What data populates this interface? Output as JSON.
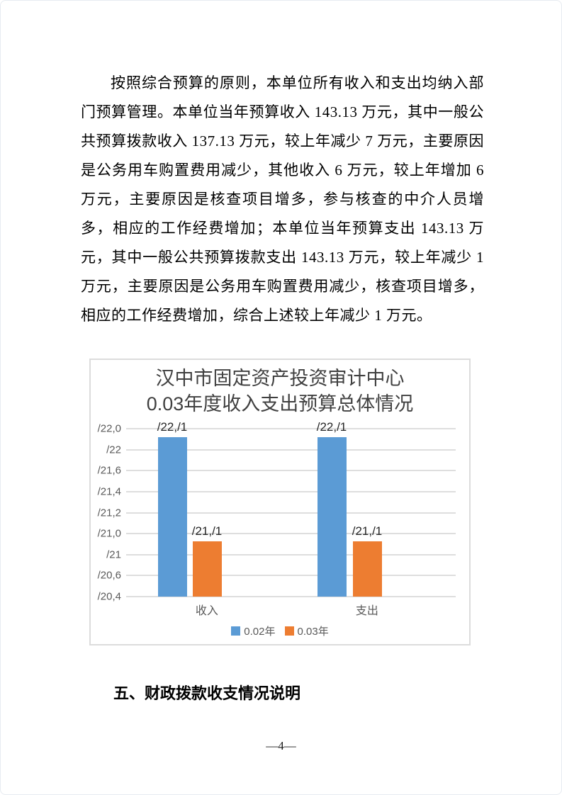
{
  "page": {
    "paragraph": "按照综合预算的原则，本单位所有收入和支出均纳入部门预算管理。本单位当年预算收入 143.13 万元，其中一般公共预算拨款收入 137.13 万元，较上年减少 7 万元，主要原因是公务用车购置费用减少，其他收入 6 万元，较上年增加 6 万元，主要原因是核查项目增多，参与核查的中介人员增多，相应的工作经费增加；本单位当年预算支出 143.13 万元，其中一般公共预算拨款支出 143.13 万元，较上年减少 1 万元，主要原因是公务用车购置费用减少，核查项目增多，相应的工作经费增加，综合上述较上年减少 1 万元。",
    "section_heading": "五、财政拨款收支情况说明",
    "page_number": "—4—"
  },
  "chart_data": {
    "type": "bar",
    "title_lines": [
      "汉中市固定资产投资审计中心",
      "0.03年度收入支出预算总体情况"
    ],
    "categories": [
      "收入",
      "支出"
    ],
    "y_ticks_top_to_bottom": [
      "/22,0",
      "/22",
      "/21,6",
      "/21,4",
      "/21,2",
      "/21,0",
      "/21",
      "/20,6",
      "/20,4"
    ],
    "series": [
      {
        "name": "0.02年",
        "color": "#5B9BD5",
        "bar_labels": [
          "/22,/1",
          "/22,/1"
        ],
        "bar_height_fractions": [
          0.95,
          0.95
        ]
      },
      {
        "name": "0.03年",
        "color": "#ED7D31",
        "bar_labels": [
          "/21,/1",
          "/21,/1"
        ],
        "bar_height_fractions": [
          0.33,
          0.33
        ]
      }
    ],
    "legend_position": "bottom",
    "grid": true
  }
}
